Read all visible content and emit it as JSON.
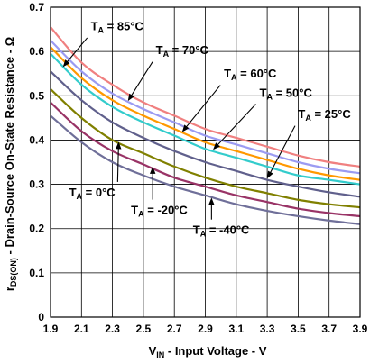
{
  "chart_data": {
    "type": "line",
    "title": "",
    "xlabel_main": "V",
    "xlabel_sub": "IN",
    "xlabel_rest": " - Input Voltage - V",
    "ylabel_main": "r",
    "ylabel_sub": "DS(ON)",
    "ylabel_rest": " - Drain-Source On-State Resistance - Ω",
    "xlim": [
      1.9,
      3.9
    ],
    "ylim": [
      0,
      0.7
    ],
    "xticks": [
      "1.9",
      "2.1",
      "2.3",
      "2.5",
      "2.7",
      "2.9",
      "3.1",
      "3.3",
      "3.5",
      "3.7",
      "3.9"
    ],
    "yticks": [
      "0",
      "0.1",
      "0.2",
      "0.3",
      "0.4",
      "0.5",
      "0.6",
      "0.7"
    ],
    "grid": true,
    "x": [
      1.9,
      2.1,
      2.3,
      2.5,
      2.7,
      2.9,
      3.1,
      3.3,
      3.5,
      3.7,
      3.9
    ],
    "series": [
      {
        "name": "85°C",
        "color": "#f08080",
        "values": [
          0.655,
          0.575,
          0.525,
          0.485,
          0.455,
          0.425,
          0.405,
          0.385,
          0.365,
          0.35,
          0.34
        ]
      },
      {
        "name": "70°C",
        "color": "#9b9bf2",
        "values": [
          0.625,
          0.555,
          0.505,
          0.47,
          0.44,
          0.41,
          0.39,
          0.37,
          0.35,
          0.335,
          0.325
        ]
      },
      {
        "name": "60°C",
        "color": "#ff9900",
        "values": [
          0.61,
          0.54,
          0.49,
          0.455,
          0.425,
          0.395,
          0.375,
          0.355,
          0.335,
          0.32,
          0.31
        ]
      },
      {
        "name": "50°C",
        "color": "#33cccc",
        "values": [
          0.595,
          0.525,
          0.475,
          0.44,
          0.41,
          0.38,
          0.36,
          0.34,
          0.32,
          0.31,
          0.3
        ]
      },
      {
        "name": "25°C",
        "color": "#60608c",
        "values": [
          0.555,
          0.49,
          0.44,
          0.405,
          0.375,
          0.35,
          0.33,
          0.31,
          0.295,
          0.282,
          0.272
        ]
      },
      {
        "name": "0°C",
        "color": "#808000",
        "values": [
          0.515,
          0.45,
          0.4,
          0.37,
          0.34,
          0.315,
          0.295,
          0.28,
          0.265,
          0.255,
          0.248
        ]
      },
      {
        "name": "-20°C",
        "color": "#993366",
        "values": [
          0.485,
          0.42,
          0.375,
          0.345,
          0.315,
          0.295,
          0.275,
          0.26,
          0.245,
          0.235,
          0.228
        ]
      },
      {
        "name": "-40°C",
        "color": "#6f6f99",
        "values": [
          0.455,
          0.395,
          0.35,
          0.32,
          0.295,
          0.275,
          0.255,
          0.24,
          0.228,
          0.218,
          0.21
        ]
      }
    ],
    "annotations": [
      {
        "ta": "T",
        "sub": "A",
        "rest": " = 85°C",
        "series": 0,
        "pointX": 1.98,
        "pointY": 0.565,
        "labelX": 2.16,
        "labelY": 0.658
      },
      {
        "ta": "T",
        "sub": "A",
        "rest": " = 70°C",
        "series": 1,
        "pointX": 2.4,
        "pointY": 0.488,
        "labelX": 2.58,
        "labelY": 0.604
      },
      {
        "ta": "T",
        "sub": "A",
        "rest": " = 60°C",
        "series": 2,
        "pointX": 2.75,
        "pointY": 0.418,
        "labelX": 3.02,
        "labelY": 0.551
      },
      {
        "ta": "T",
        "sub": "A",
        "rest": " = 50°C",
        "series": 3,
        "pointX": 2.95,
        "pointY": 0.378,
        "labelX": 3.25,
        "labelY": 0.508
      },
      {
        "ta": "T",
        "sub": "A",
        "rest": " = 25°C",
        "series": 4,
        "pointX": 3.3,
        "pointY": 0.313,
        "labelX": 3.5,
        "labelY": 0.46
      },
      {
        "ta": "T",
        "sub": "A",
        "rest": " = 0°C",
        "series": 5,
        "pointX": 2.34,
        "pointY": 0.396,
        "labelX": 2.02,
        "labelY": 0.283
      },
      {
        "ta": "T",
        "sub": "A",
        "rest": " = -20°C",
        "series": 6,
        "pointX": 2.56,
        "pointY": 0.34,
        "labelX": 2.42,
        "labelY": 0.243
      },
      {
        "ta": "T",
        "sub": "A",
        "rest": " = -40°C",
        "series": 7,
        "pointX": 2.94,
        "pointY": 0.27,
        "labelX": 2.82,
        "labelY": 0.198
      }
    ]
  }
}
